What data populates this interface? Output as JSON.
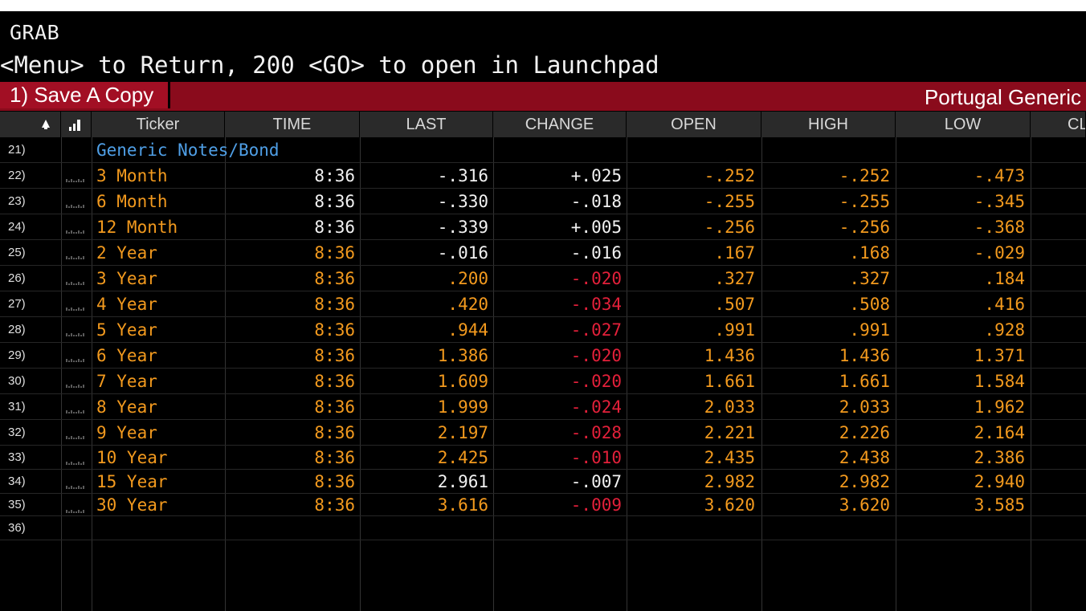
{
  "command": {
    "line1": "GRAB",
    "line2": "<Menu> to Return, 200 <GO> to open in Launchpad"
  },
  "toolbar": {
    "save_label": "1) Save A Copy",
    "page_title": "Portugal Generic"
  },
  "table": {
    "headers": [
      "Ticker",
      "TIME",
      "LAST",
      "CHANGE",
      "OPEN",
      "HIGH",
      "LOW",
      "CL"
    ],
    "section_index": "21)",
    "section_label": "Generic Notes/Bond",
    "rows": [
      {
        "idx": "22)",
        "ticker": "3 Month",
        "time": "8:36",
        "last": "-.316",
        "change": "+.025",
        "open": "-.252",
        "high": "-.252",
        "low": "-.473",
        "style": "mixed-pos"
      },
      {
        "idx": "23)",
        "ticker": "6 Month",
        "time": "8:36",
        "last": "-.330",
        "change": "-.018",
        "open": "-.255",
        "high": "-.255",
        "low": "-.345",
        "style": "mixed-pos"
      },
      {
        "idx": "24)",
        "ticker": "12 Month",
        "time": "8:36",
        "last": "-.339",
        "change": "+.005",
        "open": "-.256",
        "high": "-.256",
        "low": "-.368",
        "style": "mixed-pos"
      },
      {
        "idx": "25)",
        "ticker": "2 Year",
        "time": "8:36",
        "last": "-.016",
        "change": "-.016",
        "open": ".167",
        "high": ".168",
        "low": "-.029",
        "style": "mixed-pos"
      },
      {
        "idx": "26)",
        "ticker": "3 Year",
        "time": "8:36",
        "last": ".200",
        "change": "-.020",
        "open": ".327",
        "high": ".327",
        "low": ".184",
        "style": "down"
      },
      {
        "idx": "27)",
        "ticker": "4 Year",
        "time": "8:36",
        "last": ".420",
        "change": "-.034",
        "open": ".507",
        "high": ".508",
        "low": ".416",
        "style": "down"
      },
      {
        "idx": "28)",
        "ticker": "5 Year",
        "time": "8:36",
        "last": ".944",
        "change": "-.027",
        "open": ".991",
        "high": ".991",
        "low": ".928",
        "style": "down"
      },
      {
        "idx": "29)",
        "ticker": "6 Year",
        "time": "8:36",
        "last": "1.386",
        "change": "-.020",
        "open": "1.436",
        "high": "1.436",
        "low": "1.371",
        "style": "down"
      },
      {
        "idx": "30)",
        "ticker": "7 Year",
        "time": "8:36",
        "last": "1.609",
        "change": "-.020",
        "open": "1.661",
        "high": "1.661",
        "low": "1.584",
        "style": "down"
      },
      {
        "idx": "31)",
        "ticker": "8 Year",
        "time": "8:36",
        "last": "1.999",
        "change": "-.024",
        "open": "2.033",
        "high": "2.033",
        "low": "1.962",
        "style": "down"
      },
      {
        "idx": "32)",
        "ticker": "9 Year",
        "time": "8:36",
        "last": "2.197",
        "change": "-.028",
        "open": "2.221",
        "high": "2.226",
        "low": "2.164",
        "style": "down"
      },
      {
        "idx": "33)",
        "ticker": "10 Year",
        "time": "8:36",
        "last": "2.425",
        "change": "-.010",
        "open": "2.435",
        "high": "2.438",
        "low": "2.386",
        "style": "down"
      },
      {
        "idx": "34)",
        "ticker": "15 Year",
        "time": "8:36",
        "last": "2.961",
        "change": "-.007",
        "open": "2.982",
        "high": "2.982",
        "low": "2.940",
        "style": "mixed-pos"
      },
      {
        "idx": "35)",
        "ticker": "30 Year",
        "time": "8:36",
        "last": "3.616",
        "change": "-.009",
        "open": "3.620",
        "high": "3.620",
        "low": "3.585",
        "style": "down"
      }
    ],
    "empty_index": "36)"
  },
  "colors": {
    "accent_bar": "#8a0b1c",
    "orange": "#f39a1e",
    "red": "#e3203a",
    "blue": "#4f9fe6"
  },
  "icons": [
    "alert-bell-icon",
    "bar-chart-icon",
    "sparkline-icon"
  ]
}
